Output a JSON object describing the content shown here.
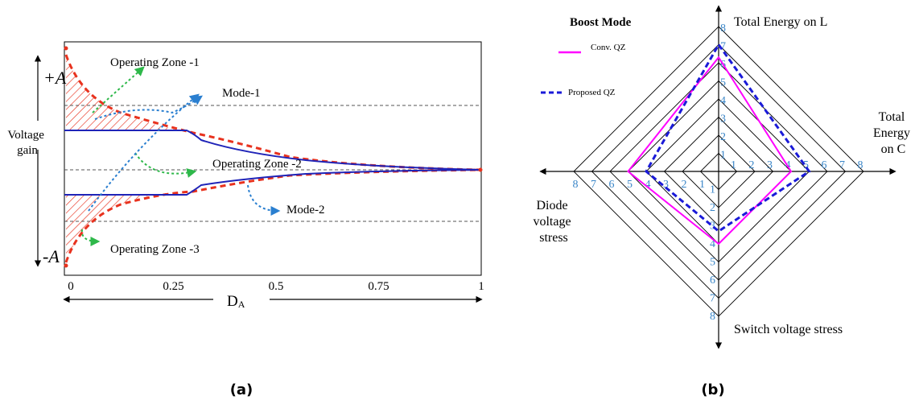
{
  "colors": {
    "zone_red": "#e8321e",
    "blue_curve": "#1f24b8",
    "arrow_green": "#2eb84a",
    "arrow_blue": "#2a7fd0",
    "conv_qz": "#ff00ff",
    "proposed_qz": "#1a1ad8",
    "tick_blue": "#3a86c8"
  },
  "panel_a": {
    "caption": "(a)",
    "ylabel": "Voltage\ngain",
    "xlabel": "D",
    "xlabel_sub": "A",
    "plus_label": "+A",
    "minus_label": "-A",
    "xticks": [
      "0",
      "0.25",
      "0.5",
      "0.75",
      "1"
    ],
    "annotations": {
      "zone1": "Operating Zone -1",
      "zone2": "Operating Zone -2",
      "zone3": "Operating Zone -3",
      "mode1": "Mode-1",
      "mode2": "Mode-2"
    }
  },
  "panel_b": {
    "caption": "(b)",
    "title": "Boost Mode",
    "legend": [
      "Conv. QZ",
      "Proposed QZ"
    ],
    "axis_labels": {
      "top": "Total Energy on L",
      "right": "Total\nEnergy\non C",
      "bottom": "Switch voltage stress",
      "left": "Diode\nvoltage\nstress"
    },
    "ticks": [
      "1",
      "2",
      "3",
      "4",
      "5",
      "6",
      "7",
      "8"
    ]
  },
  "chart_data": [
    {
      "type": "line",
      "title": "",
      "xlabel": "DA",
      "ylabel": "Voltage gain",
      "xlim": [
        0,
        1
      ],
      "xticks": [
        0,
        0.25,
        0.5,
        0.75,
        1
      ],
      "series": [
        {
          "name": "Mode-1",
          "x": [
            0,
            0.3,
            0.5,
            0.75,
            1.0
          ],
          "y": [
            0.45,
            0.45,
            0.18,
            0.05,
            0.0
          ]
        },
        {
          "name": "Mode-2",
          "x": [
            0,
            0.3,
            0.5,
            0.75,
            1.0
          ],
          "y": [
            -0.45,
            -0.45,
            -0.18,
            -0.05,
            0.0
          ]
        }
      ],
      "annotations": [
        "Operating Zone -1",
        "Operating Zone -2",
        "Operating Zone -3",
        "+A",
        "-A"
      ]
    },
    {
      "type": "radar",
      "title": "Boost Mode",
      "axes": [
        "Total Energy on L",
        "Total Energy on C",
        "Switch voltage stress",
        "Diode voltage stress"
      ],
      "range": [
        0,
        8
      ],
      "series": [
        {
          "name": "Conv. QZ",
          "values": [
            6.3,
            4.0,
            4.0,
            5.0
          ]
        },
        {
          "name": "Proposed QZ",
          "values": [
            7.0,
            5.0,
            3.3,
            4.0
          ]
        }
      ]
    }
  ]
}
